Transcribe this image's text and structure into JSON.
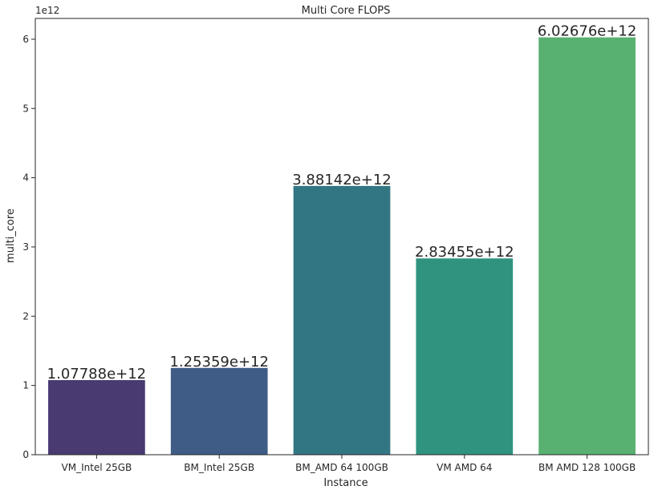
{
  "chart_data": {
    "type": "bar",
    "title": "Multi Core FLOPS",
    "xlabel": "Instance",
    "ylabel": "multi_core",
    "y_offset_text": "1e12",
    "y_scale": 1000000000000.0,
    "ylim": [
      0,
      6.3
    ],
    "yticks": [
      0,
      1,
      2,
      3,
      4,
      5,
      6
    ],
    "grid": false,
    "categories": [
      "VM_Intel 25GB",
      "BM_Intel 25GB",
      "BM_AMD 64 100GB",
      "VM AMD 64",
      "BM AMD 128 100GB"
    ],
    "values": [
      1077880000000.0,
      1253590000000.0,
      3881420000000.0,
      2834550000000.0,
      6026760000000.0
    ],
    "data_labels": [
      "1.07788e+12",
      "1.25359e+12",
      "3.88142e+12",
      "2.83455e+12",
      "6.02676e+12"
    ],
    "colors": [
      "#4a3a72",
      "#3e5c86",
      "#337683",
      "#30937f",
      "#58b170"
    ]
  }
}
